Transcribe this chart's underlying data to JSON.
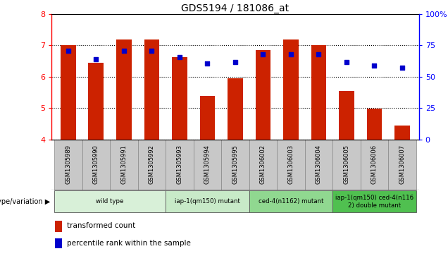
{
  "title": "GDS5194 / 181086_at",
  "samples": [
    "GSM1305989",
    "GSM1305990",
    "GSM1305991",
    "GSM1305992",
    "GSM1305993",
    "GSM1305994",
    "GSM1305995",
    "GSM1306002",
    "GSM1306003",
    "GSM1306004",
    "GSM1306005",
    "GSM1306006",
    "GSM1306007"
  ],
  "bar_values": [
    7.0,
    6.45,
    7.18,
    7.18,
    6.62,
    5.4,
    5.95,
    6.85,
    7.2,
    7.0,
    5.55,
    4.98,
    4.45
  ],
  "dot_values": [
    6.82,
    6.57,
    6.82,
    6.82,
    6.62,
    6.42,
    6.48,
    6.72,
    6.72,
    6.72,
    6.48,
    6.35,
    6.28
  ],
  "bar_bottom": 4.0,
  "ylim": [
    4.0,
    8.0
  ],
  "y_left_ticks": [
    4,
    5,
    6,
    7,
    8
  ],
  "right_tick_labels": [
    "0",
    "25",
    "50",
    "75",
    "100%"
  ],
  "bar_color": "#CC2200",
  "dot_color": "#0000CC",
  "groups": [
    {
      "label": "wild type",
      "start": 0,
      "end": 3,
      "color": "#d8f0d8"
    },
    {
      "label": "iap-1(qm150) mutant",
      "start": 4,
      "end": 6,
      "color": "#c8eac8"
    },
    {
      "label": "ced-4(n1162) mutant",
      "start": 7,
      "end": 9,
      "color": "#90d890"
    },
    {
      "label": "iap-1(qm150) ced-4(n116\n2) double mutant",
      "start": 10,
      "end": 12,
      "color": "#50c050"
    }
  ],
  "group_label": "genotype/variation",
  "legend_bar_label": "transformed count",
  "legend_dot_label": "percentile rank within the sample",
  "cell_bg": "#c8c8c8",
  "cell_border": "#888888"
}
